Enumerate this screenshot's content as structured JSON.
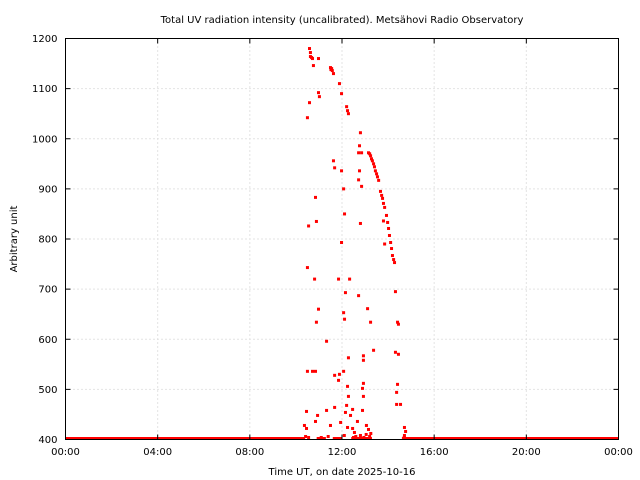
{
  "chart_data": {
    "type": "scatter",
    "title": "Total UV radiation intensity (uncalibrated). Metsähovi Radio Observatory",
    "xlabel": "Time UT, on date 2025-10-16",
    "ylabel": "Arbitrary unit",
    "xlim": [
      0,
      24
    ],
    "ylim": [
      400,
      1200
    ],
    "x_ticks": [
      0,
      4,
      8,
      12,
      16,
      20,
      24
    ],
    "x_tick_labels": [
      "00:00",
      "04:00",
      "08:00",
      "12:00",
      "16:00",
      "20:00",
      "00:00"
    ],
    "y_ticks": [
      400,
      500,
      600,
      700,
      800,
      900,
      1000,
      1100,
      1200
    ],
    "y_tick_labels": [
      "400",
      "500",
      "600",
      "700",
      "800",
      "900",
      "1000",
      "1100",
      "1200"
    ],
    "grid": true,
    "color": "#ff0000",
    "baseline": {
      "value": 400,
      "x_ranges": [
        [
          0,
          10.4
        ],
        [
          10.9,
          11.3
        ],
        [
          11.6,
          12.0
        ],
        [
          12.4,
          13.3
        ],
        [
          14.6,
          24
        ]
      ]
    },
    "series": [
      {
        "name": "UV",
        "points": [
          [
            10.59,
            1180
          ],
          [
            10.63,
            1172
          ],
          [
            10.63,
            1164
          ],
          [
            10.68,
            1162
          ],
          [
            10.72,
            1160
          ],
          [
            10.76,
            1146
          ],
          [
            10.98,
            1160
          ],
          [
            10.59,
            1072
          ],
          [
            10.5,
            1042
          ],
          [
            10.98,
            1092
          ],
          [
            11.02,
            1084
          ],
          [
            11.5,
            1142
          ],
          [
            11.55,
            1140
          ],
          [
            11.58,
            1136
          ],
          [
            11.52,
            1138
          ],
          [
            11.63,
            1130
          ],
          [
            11.89,
            1110
          ],
          [
            11.98,
            1090
          ],
          [
            12.2,
            1064
          ],
          [
            12.24,
            1056
          ],
          [
            12.28,
            1050
          ],
          [
            12.8,
            1012
          ],
          [
            12.76,
            986
          ],
          [
            12.72,
            972
          ],
          [
            12.85,
            972
          ],
          [
            13.15,
            972
          ],
          [
            13.2,
            970
          ],
          [
            13.24,
            966
          ],
          [
            13.28,
            960
          ],
          [
            13.32,
            956
          ],
          [
            13.37,
            950
          ],
          [
            13.41,
            944
          ],
          [
            13.45,
            936
          ],
          [
            13.5,
            930
          ],
          [
            13.54,
            924
          ],
          [
            13.59,
            917
          ],
          [
            13.67,
            895
          ],
          [
            13.72,
            887
          ],
          [
            13.76,
            881
          ],
          [
            13.8,
            871
          ],
          [
            13.85,
            863
          ],
          [
            13.93,
            847
          ],
          [
            13.98,
            833
          ],
          [
            14.02,
            821
          ],
          [
            14.06,
            807
          ],
          [
            14.11,
            793
          ],
          [
            14.15,
            781
          ],
          [
            14.19,
            767
          ],
          [
            14.24,
            759
          ],
          [
            14.28,
            753
          ],
          [
            13.8,
            836
          ],
          [
            13.85,
            790
          ],
          [
            11.63,
            956
          ],
          [
            11.68,
            942
          ],
          [
            11.98,
            936
          ],
          [
            12.76,
            936
          ],
          [
            12.85,
            905
          ],
          [
            12.07,
            900
          ],
          [
            12.11,
            850
          ],
          [
            10.85,
            883
          ],
          [
            10.89,
            835
          ],
          [
            10.55,
            826
          ],
          [
            11.98,
            793
          ],
          [
            12.8,
            831
          ],
          [
            12.72,
            918
          ],
          [
            10.5,
            743
          ],
          [
            10.81,
            720
          ],
          [
            11.85,
            720
          ],
          [
            12.33,
            720
          ],
          [
            12.15,
            693
          ],
          [
            12.72,
            687
          ],
          [
            10.98,
            660
          ],
          [
            12.07,
            653
          ],
          [
            12.11,
            640
          ],
          [
            10.89,
            634
          ],
          [
            13.11,
            661
          ],
          [
            13.24,
            634
          ],
          [
            14.32,
            695
          ],
          [
            14.41,
            634
          ],
          [
            14.45,
            630
          ],
          [
            11.33,
            596
          ],
          [
            13.37,
            578
          ],
          [
            12.28,
            563
          ],
          [
            12.93,
            567
          ],
          [
            12.93,
            558
          ],
          [
            14.32,
            574
          ],
          [
            14.45,
            570
          ],
          [
            10.5,
            536
          ],
          [
            10.72,
            536
          ],
          [
            10.85,
            536
          ],
          [
            11.89,
            530
          ],
          [
            12.07,
            536
          ],
          [
            11.68,
            528
          ],
          [
            12.24,
            506
          ],
          [
            12.93,
            512
          ],
          [
            12.89,
            502
          ],
          [
            11.85,
            518
          ],
          [
            14.41,
            510
          ],
          [
            14.37,
            494
          ],
          [
            12.28,
            486
          ],
          [
            12.93,
            486
          ],
          [
            11.68,
            464
          ],
          [
            12.2,
            468
          ],
          [
            12.46,
            460
          ],
          [
            12.37,
            448
          ],
          [
            12.15,
            454
          ],
          [
            10.46,
            456
          ],
          [
            11.33,
            458
          ],
          [
            12.89,
            458
          ],
          [
            14.37,
            470
          ],
          [
            14.54,
            470
          ],
          [
            10.94,
            448
          ],
          [
            10.85,
            436
          ],
          [
            10.37,
            428
          ],
          [
            10.46,
            422
          ],
          [
            11.5,
            428
          ],
          [
            11.94,
            434
          ],
          [
            12.24,
            424
          ],
          [
            12.46,
            422
          ],
          [
            12.67,
            436
          ],
          [
            13.06,
            428
          ],
          [
            12.54,
            414
          ],
          [
            12.8,
            408
          ],
          [
            13.15,
            420
          ],
          [
            14.71,
            424
          ],
          [
            14.76,
            416
          ],
          [
            14.71,
            408
          ],
          [
            10.42,
            406
          ],
          [
            10.55,
            404
          ],
          [
            11.1,
            404
          ],
          [
            11.4,
            406
          ],
          [
            12.1,
            408
          ],
          [
            12.5,
            404
          ],
          [
            12.6,
            406
          ],
          [
            12.95,
            404
          ],
          [
            13.05,
            410
          ],
          [
            13.2,
            406
          ],
          [
            13.25,
            412
          ],
          [
            14.7,
            404
          ]
        ]
      }
    ]
  }
}
